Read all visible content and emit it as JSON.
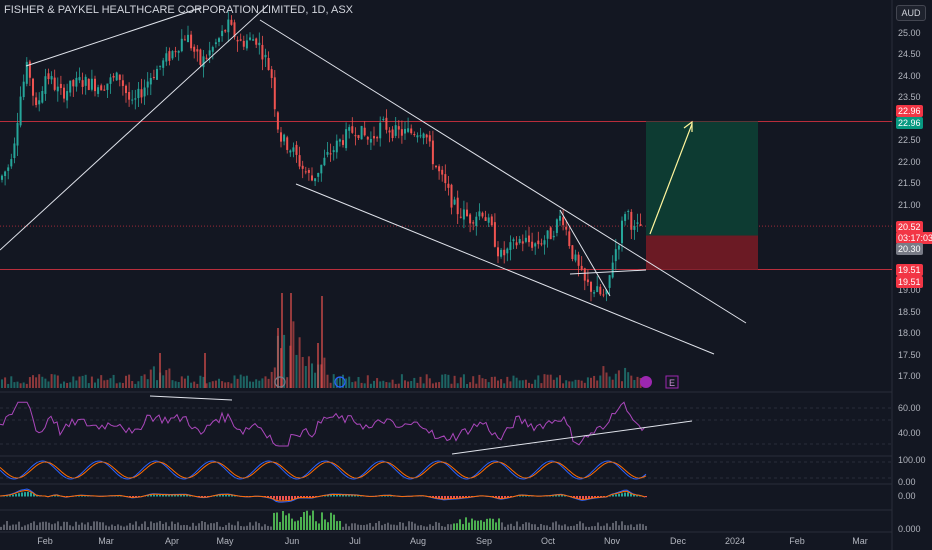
{
  "header": {
    "title": "FISHER & PAYKEL HEALTHCARE CORPORATION LIMITED, 1D, ASX",
    "currency": "AUD"
  },
  "price_axis": {
    "ticks": [
      "25.00",
      "24.50",
      "24.00",
      "23.50",
      "23.00",
      "22.50",
      "22.00",
      "21.50",
      "21.00",
      "20.50",
      "20.00",
      "19.50",
      "19.00",
      "18.50",
      "18.00",
      "17.50",
      "17.00"
    ],
    "labels": {
      "target_top": "22.96",
      "target_bottom": "22.96",
      "last_price": "20.52",
      "countdown": "03:17:03",
      "entry": "20.30",
      "stop_top": "19.51",
      "stop_bottom": "19.51"
    }
  },
  "rsi_axis": {
    "ticks": [
      "60.00",
      "40.00"
    ]
  },
  "stoch_axis": {
    "ticks": [
      "100.00",
      "0.00"
    ]
  },
  "macd_axis": {
    "ticks": [
      "0.00"
    ]
  },
  "vol_axis": {
    "ticks": [
      "0.000"
    ]
  },
  "time_axis": {
    "ticks": [
      "Feb",
      "Mar",
      "Apr",
      "May",
      "Jun",
      "Jul",
      "Aug",
      "Sep",
      "Oct",
      "Nov",
      "Dec",
      "2024",
      "Feb",
      "Mar"
    ]
  },
  "markers": {
    "earnings": "E"
  },
  "colors": {
    "background": "#131722",
    "up": "#26a69a",
    "down": "#ef5350",
    "trend_line": "#e0e3eb",
    "rsi": "#ab47bc",
    "target_zone": "#0d3b32",
    "stop_zone": "#6b1a24",
    "arrow": "#fff59d"
  },
  "chart_data": {
    "type": "candlestick",
    "title": "FISHER & PAYKEL HEALTHCARE CORPORATION LIMITED, 1D, ASX",
    "ylim": [
      16.8,
      25.4
    ],
    "x": [
      "Feb",
      "Mar",
      "Apr",
      "May",
      "Jun",
      "Jul",
      "Aug",
      "Sep",
      "Oct",
      "Nov",
      "Dec",
      "2024",
      "Feb",
      "Mar"
    ],
    "series": [
      {
        "values": [
          21.7,
          24.0,
          23.8,
          24.4,
          25.0,
          24.7,
          22.6,
          22.7,
          22.9,
          20.6,
          20.4,
          19.8,
          20.2,
          20.52
        ]
      }
    ],
    "levels": {
      "target": 22.96,
      "entry": 20.3,
      "stop": 19.51,
      "last": 20.52
    }
  }
}
